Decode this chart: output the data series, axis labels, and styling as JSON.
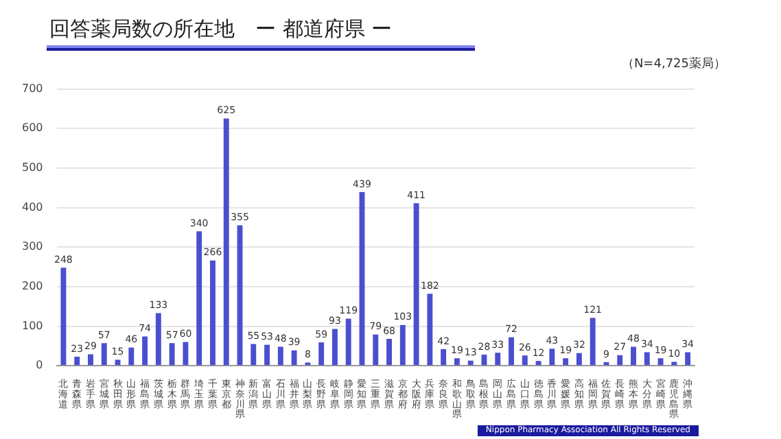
{
  "chart_data": {
    "type": "bar",
    "title": "回答薬局数の所在地　ー 都道府県 ー",
    "subtitle": "（N=4,725薬局）",
    "categories": [
      "北海道",
      "青森県",
      "岩手県",
      "宮城県",
      "秋田県",
      "山形県",
      "福島県",
      "茨城県",
      "栃木県",
      "群馬県",
      "埼玉県",
      "千葉県",
      "東京都",
      "神奈川県",
      "新潟県",
      "富山県",
      "石川県",
      "福井県",
      "山梨県",
      "長野県",
      "岐阜県",
      "静岡県",
      "愛知県",
      "三重県",
      "滋賀県",
      "京都府",
      "大阪府",
      "兵庫県",
      "奈良県",
      "和歌山県",
      "鳥取県",
      "島根県",
      "岡山県",
      "広島県",
      "山口県",
      "徳島県",
      "香川県",
      "愛媛県",
      "高知県",
      "福岡県",
      "佐賀県",
      "長崎県",
      "熊本県",
      "大分県",
      "宮崎県",
      "鹿児島県",
      "沖縄県"
    ],
    "values": [
      248,
      23,
      29,
      57,
      15,
      46,
      74,
      133,
      57,
      60,
      340,
      266,
      625,
      355,
      55,
      53,
      48,
      39,
      8,
      59,
      93,
      119,
      439,
      79,
      68,
      103,
      411,
      182,
      42,
      19,
      13,
      28,
      33,
      72,
      26,
      12,
      43,
      19,
      32,
      121,
      9,
      27,
      48,
      34,
      19,
      10,
      34
    ],
    "color": "#4b4fcf",
    "ylim": [
      0,
      700
    ],
    "yticks": [
      0,
      100,
      200,
      300,
      400,
      500,
      600,
      700
    ],
    "grid": "y",
    "data_labels": true,
    "legend": false,
    "annotations": [
      "Nippon Pharmacy Association All Rights Reserved"
    ]
  }
}
